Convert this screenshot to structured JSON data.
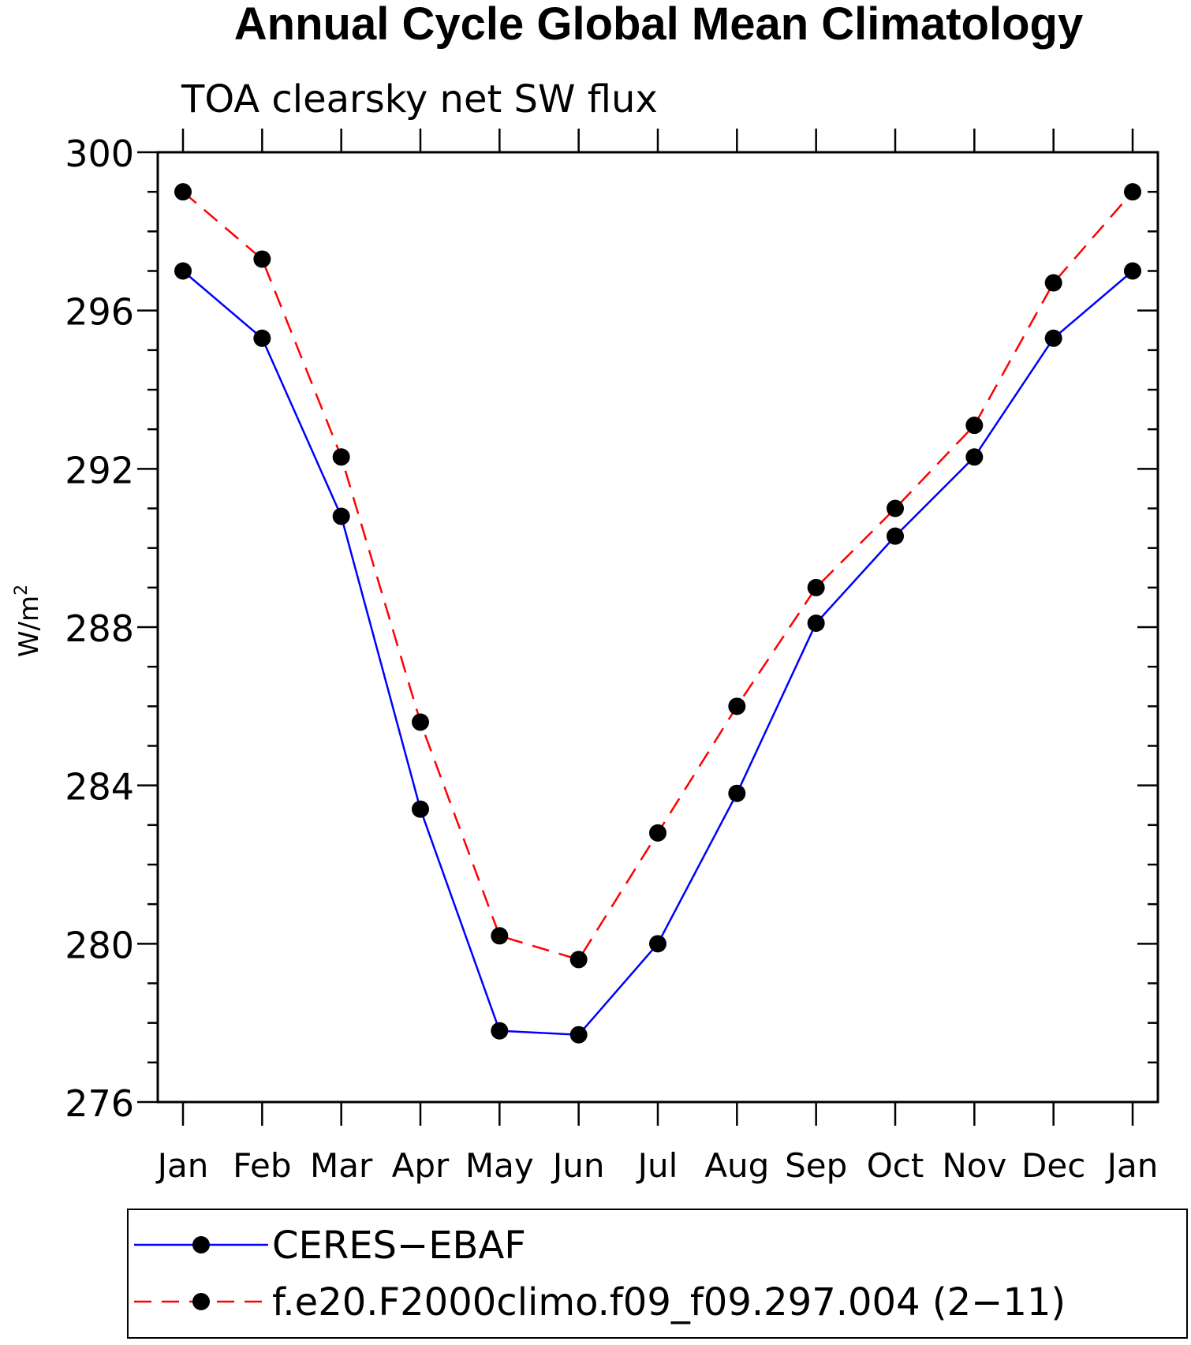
{
  "chart_data": {
    "type": "line",
    "title": "Annual Cycle Global Mean Climatology",
    "subtitle": "TOA clearsky net SW flux",
    "ylabel_base": "W/m",
    "ylabel_sup": "2",
    "xlabel": "",
    "categories": [
      "Jan",
      "Feb",
      "Mar",
      "Apr",
      "May",
      "Jun",
      "Jul",
      "Aug",
      "Sep",
      "Oct",
      "Nov",
      "Dec",
      "Jan"
    ],
    "ylim": [
      276,
      300
    ],
    "yticks": [
      276,
      280,
      284,
      288,
      292,
      296,
      300
    ],
    "yminor_step": 1,
    "grid": false,
    "legend_position": "bottom",
    "series": [
      {
        "name": "CERES−EBAF",
        "color": "#0000ff",
        "dash": "solid",
        "marker": "filled-circle",
        "values": [
          297.0,
          295.3,
          290.8,
          283.4,
          277.8,
          277.7,
          280.0,
          283.8,
          288.1,
          290.3,
          292.3,
          295.3,
          297.0
        ]
      },
      {
        "name": "f.e20.F2000climo.f09_f09.297.004 (2−11)",
        "color": "#ff0000",
        "dash": "dashed",
        "marker": "filled-circle",
        "values": [
          299.0,
          297.3,
          292.3,
          285.6,
          280.2,
          279.6,
          282.8,
          286.0,
          289.0,
          291.0,
          293.1,
          296.7,
          299.0
        ]
      }
    ]
  }
}
